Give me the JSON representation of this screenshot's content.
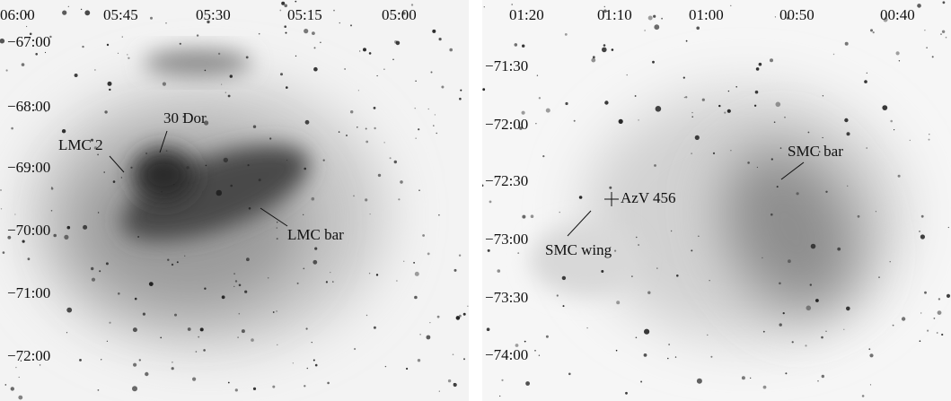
{
  "panels": [
    {
      "ra_labels": [
        "06:00",
        "05:45",
        "05:30",
        "05:15",
        "05:00"
      ],
      "dec_labels": [
        "−67:00",
        "−68:00",
        "−69:00",
        "−70:00",
        "−71:00",
        "−72:00"
      ],
      "annotations": [
        "30 Dor",
        "LMC 2",
        "LMC bar"
      ]
    },
    {
      "ra_labels": [
        "01:20",
        "01:10",
        "01:00",
        "00:50",
        "00:40"
      ],
      "dec_labels": [
        "−71:30",
        "−72:00",
        "−72:30",
        "−73:00",
        "−73:30",
        "−74:00"
      ],
      "annotations": [
        "SMC bar",
        "AzV 456",
        "SMC wing"
      ]
    }
  ]
}
